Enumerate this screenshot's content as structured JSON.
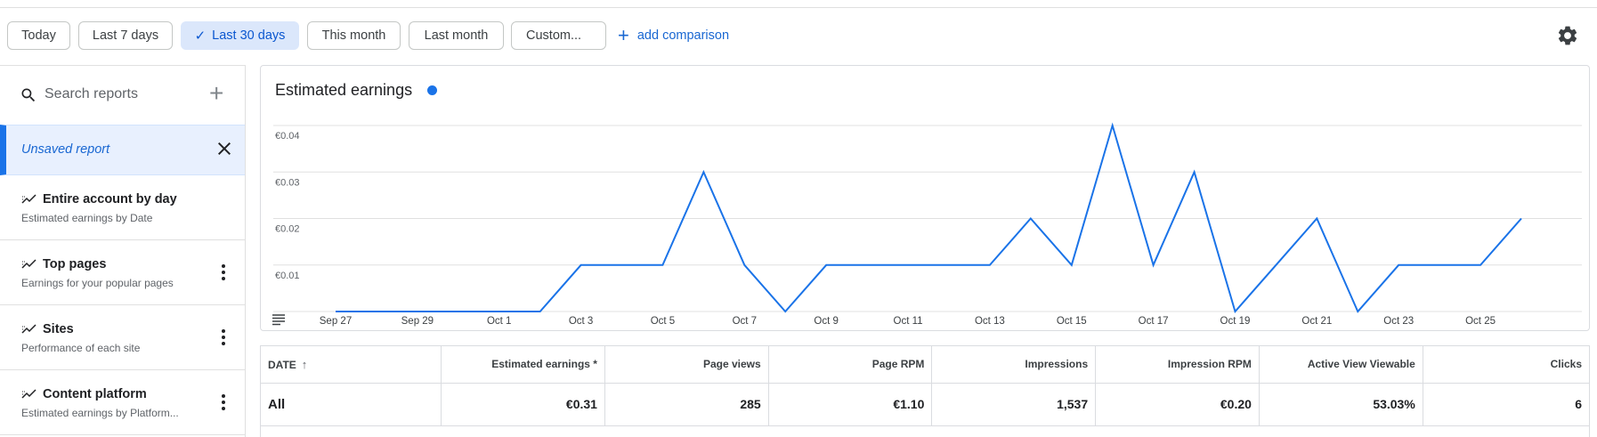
{
  "date_filters": [
    {
      "label": "Today",
      "selected": false
    },
    {
      "label": "Last 7 days",
      "selected": false
    },
    {
      "label": "Last 30 days",
      "selected": true
    },
    {
      "label": "This month",
      "selected": false
    },
    {
      "label": "Last month",
      "selected": false
    },
    {
      "label": "Custom...",
      "selected": false
    }
  ],
  "add_comparison_label": "add comparison",
  "sidebar": {
    "search_placeholder": "Search reports",
    "unsaved_label": "Unsaved report",
    "reports": [
      {
        "title": "Entire account by day",
        "subtitle": "Estimated earnings by Date",
        "has_menu": false
      },
      {
        "title": "Top pages",
        "subtitle": "Earnings for your popular pages",
        "has_menu": true
      },
      {
        "title": "Sites",
        "subtitle": "Performance of each site",
        "has_menu": true
      },
      {
        "title": "Content platform",
        "subtitle": "Estimated earnings by Platform...",
        "has_menu": true
      }
    ]
  },
  "chart_title": "Estimated earnings",
  "colors": {
    "accent": "#1a73e8",
    "selected_chip_bg": "#dbe7fb"
  },
  "chart_data": {
    "type": "line",
    "title": "Estimated earnings",
    "x": [
      "Sep 27",
      "Sep 28",
      "Sep 29",
      "Sep 30",
      "Oct 1",
      "Oct 2",
      "Oct 3",
      "Oct 4",
      "Oct 5",
      "Oct 6",
      "Oct 7",
      "Oct 8",
      "Oct 9",
      "Oct 10",
      "Oct 11",
      "Oct 12",
      "Oct 13",
      "Oct 14",
      "Oct 15",
      "Oct 16",
      "Oct 17",
      "Oct 18",
      "Oct 19",
      "Oct 20",
      "Oct 21",
      "Oct 22",
      "Oct 23",
      "Oct 24",
      "Oct 25",
      "Oct 26"
    ],
    "x_tick_labels": [
      "Sep 27",
      "Sep 29",
      "Oct 1",
      "Oct 3",
      "Oct 5",
      "Oct 7",
      "Oct 9",
      "Oct 11",
      "Oct 13",
      "Oct 15",
      "Oct 17",
      "Oct 19",
      "Oct 21",
      "Oct 23",
      "Oct 25"
    ],
    "series": [
      {
        "values": [
          0,
          0,
          0,
          0,
          0,
          0,
          0.01,
          0.01,
          0.01,
          0.03,
          0.01,
          0,
          0.01,
          0.01,
          0.01,
          0.01,
          0.01,
          0.02,
          0.01,
          0.04,
          0.01,
          0.03,
          0,
          0.01,
          0.02,
          0,
          0.01,
          0.01,
          0.01,
          0.02
        ]
      }
    ],
    "y_ticks": [
      "€0.01",
      "€0.02",
      "€0.03",
      "€0.04"
    ],
    "y_tick_values": [
      0.01,
      0.02,
      0.03,
      0.04
    ],
    "ylim": [
      0,
      0.04
    ],
    "grid": true,
    "color": "#1a73e8"
  },
  "table": {
    "headers": [
      "DATE",
      "Estimated earnings *",
      "Page views",
      "Page RPM",
      "Impressions",
      "Impression RPM",
      "Active View Viewable",
      "Clicks"
    ],
    "total_row": [
      "All",
      "€0.31",
      "285",
      "€1.10",
      "1,537",
      "€0.20",
      "53.03%",
      "6"
    ]
  }
}
